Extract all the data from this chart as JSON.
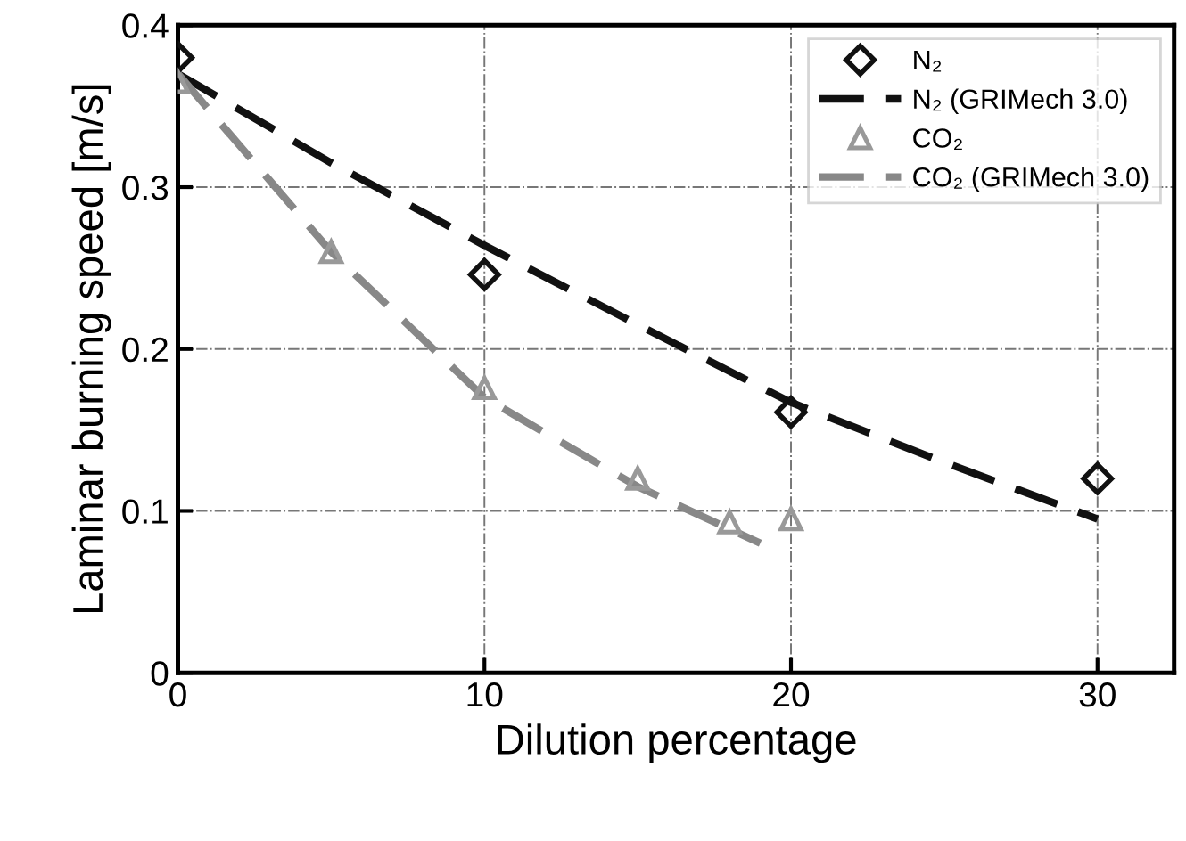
{
  "chart_data": {
    "type": "scatter",
    "xlabel": "Dilution percentage",
    "ylabel": "Laminar burning speed [m/s]",
    "xlim": [
      0,
      32.5
    ],
    "ylim": [
      0,
      0.4
    ],
    "xticks": [
      0,
      10,
      20,
      30
    ],
    "yticks": [
      0,
      0.1,
      0.2,
      0.3,
      0.4
    ],
    "grid": true,
    "legend": "top right",
    "series": [
      {
        "name": "N₂",
        "marker": "diamond",
        "color": "#111111",
        "x": [
          0,
          10,
          20,
          30
        ],
        "values": [
          0.38,
          0.246,
          0.161,
          0.12
        ]
      },
      {
        "name": "N₂ (GRIMech 3.0)",
        "type": "line",
        "line_style": "dashed",
        "marker": "none",
        "color": "#111111",
        "x": [
          0,
          5,
          10,
          15,
          20,
          25,
          30
        ],
        "values": [
          0.37,
          0.315,
          0.264,
          0.215,
          0.167,
          0.13,
          0.095
        ]
      },
      {
        "name": "CO₂",
        "marker": "triangle",
        "color": "#999999",
        "x": [
          0,
          5,
          10,
          15,
          18,
          20
        ],
        "values": [
          0.365,
          0.26,
          0.176,
          0.12,
          0.093,
          0.095
        ]
      },
      {
        "name": "CO₂ (GRIMech 3.0)",
        "type": "line",
        "line_style": "dashed",
        "marker": "none",
        "color": "#888888",
        "x": [
          0,
          5,
          10,
          15,
          19
        ],
        "values": [
          0.37,
          0.26,
          0.17,
          0.115,
          0.08
        ]
      }
    ]
  }
}
